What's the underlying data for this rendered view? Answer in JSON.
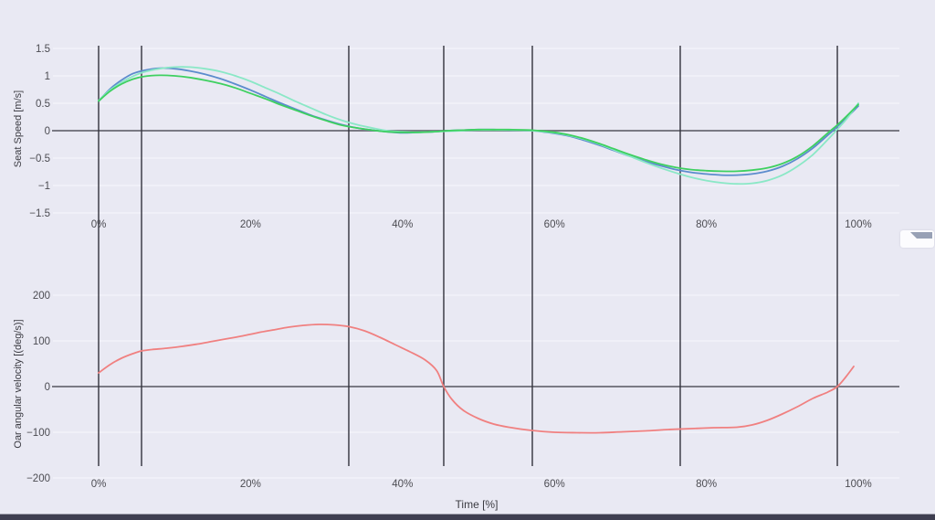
{
  "theme": {
    "background": "#e9e9f3",
    "grid_color": "#f5f5fb",
    "zero_line_color": "#7a7a84",
    "event_line_color": "#32323c",
    "tick_text_color": "#4c4c52",
    "axis_title_color": "#3b3b42",
    "bottom_bar_color": "#3e3e50",
    "bottom_bar_border": "#a2a2ae",
    "toolbar_icon_color": "#98a1b5"
  },
  "event_lines_pct": [
    0,
    5.65,
    32.93,
    45.43,
    57.09,
    76.56,
    97.24
  ],
  "chart_data": [
    {
      "type": "line",
      "title": "",
      "ylabel": "Seat Speed [m/s]",
      "xlabel": "",
      "grid": true,
      "legend": "none",
      "ylim": [
        -1.6,
        1.6
      ],
      "xlim_pct": [
        -6,
        105
      ],
      "y_ticks": {
        "values": [
          1.5,
          1,
          0.5,
          0,
          -0.5,
          -1,
          -1.5
        ],
        "labels": [
          "1.5",
          "1",
          "0.5",
          "0",
          "−0.5",
          "−1",
          "−1.5"
        ]
      },
      "x_ticks": {
        "values_pct": [
          0,
          20,
          40,
          60,
          80,
          100
        ],
        "labels": [
          "0%",
          "20%",
          "40%",
          "60%",
          "80%",
          "100%"
        ]
      },
      "series": [
        {
          "name": "seat-speed-trace-blue",
          "color": "#5c8ccd",
          "x_pct": [
            0,
            1.5,
            3,
            4.5,
            6,
            8,
            10,
            12,
            14,
            16,
            18,
            20,
            22,
            24,
            26,
            28,
            30,
            32,
            34,
            36,
            38,
            40,
            42,
            44,
            46,
            48,
            50,
            52,
            54,
            57,
            60,
            62,
            64,
            66,
            68,
            70,
            72,
            74,
            76,
            78,
            80,
            82,
            84,
            86,
            88,
            90,
            92,
            94,
            96,
            97.2,
            98.5,
            100
          ],
          "y": [
            0.54,
            0.76,
            0.92,
            1.04,
            1.1,
            1.14,
            1.13,
            1.09,
            1.03,
            0.95,
            0.85,
            0.74,
            0.62,
            0.5,
            0.39,
            0.28,
            0.19,
            0.11,
            0.05,
            0.01,
            -0.02,
            -0.04,
            -0.03,
            -0.02,
            0.0,
            0.01,
            0.02,
            0.02,
            0.01,
            0.0,
            -0.05,
            -0.1,
            -0.18,
            -0.27,
            -0.37,
            -0.47,
            -0.56,
            -0.64,
            -0.71,
            -0.76,
            -0.79,
            -0.81,
            -0.81,
            -0.79,
            -0.74,
            -0.65,
            -0.51,
            -0.32,
            -0.08,
            0.07,
            0.24,
            0.45
          ]
        },
        {
          "name": "seat-speed-trace-mint",
          "color": "#8ae8c6",
          "x_pct": [
            0,
            1.5,
            3,
            4.5,
            6,
            8,
            10,
            12,
            14,
            16,
            18,
            20,
            22,
            24,
            26,
            28,
            30,
            32,
            34,
            36,
            38,
            40,
            42,
            44,
            46,
            48,
            50,
            52,
            54,
            57,
            60,
            62,
            64,
            66,
            68,
            70,
            72,
            74,
            76,
            78,
            80,
            82,
            84,
            86,
            88,
            90,
            92,
            94,
            96,
            97.2,
            98.5,
            100
          ],
          "y": [
            0.55,
            0.74,
            0.88,
            0.99,
            1.07,
            1.13,
            1.16,
            1.16,
            1.13,
            1.08,
            1.0,
            0.9,
            0.78,
            0.66,
            0.53,
            0.41,
            0.29,
            0.19,
            0.11,
            0.05,
            0.0,
            -0.02,
            -0.03,
            -0.02,
            -0.01,
            0.0,
            0.01,
            0.01,
            0.01,
            0.0,
            -0.04,
            -0.09,
            -0.16,
            -0.25,
            -0.36,
            -0.47,
            -0.58,
            -0.68,
            -0.77,
            -0.85,
            -0.91,
            -0.95,
            -0.97,
            -0.96,
            -0.91,
            -0.81,
            -0.65,
            -0.44,
            -0.16,
            0.02,
            0.22,
            0.5
          ]
        },
        {
          "name": "seat-speed-trace-green",
          "color": "#3ed060",
          "x_pct": [
            0,
            1.5,
            3,
            4.5,
            6,
            8,
            10,
            12,
            14,
            16,
            18,
            20,
            22,
            24,
            26,
            28,
            30,
            32,
            34,
            36,
            38,
            40,
            42,
            44,
            46,
            48,
            50,
            52,
            54,
            57,
            60,
            62,
            64,
            66,
            68,
            70,
            72,
            74,
            76,
            78,
            80,
            82,
            84,
            86,
            88,
            90,
            92,
            94,
            96,
            97.2,
            98.5,
            100
          ],
          "y": [
            0.54,
            0.72,
            0.85,
            0.94,
            0.99,
            1.01,
            1.0,
            0.97,
            0.92,
            0.86,
            0.78,
            0.68,
            0.58,
            0.47,
            0.37,
            0.27,
            0.18,
            0.1,
            0.05,
            0.01,
            -0.02,
            -0.03,
            -0.03,
            -0.02,
            0.0,
            0.01,
            0.02,
            0.02,
            0.02,
            0.01,
            -0.03,
            -0.08,
            -0.15,
            -0.24,
            -0.34,
            -0.44,
            -0.53,
            -0.61,
            -0.67,
            -0.71,
            -0.73,
            -0.74,
            -0.74,
            -0.72,
            -0.68,
            -0.6,
            -0.47,
            -0.28,
            -0.04,
            0.1,
            0.27,
            0.48
          ]
        }
      ]
    },
    {
      "type": "line",
      "title": "",
      "ylabel": "Oar angular velocity [(deg/s)]",
      "xlabel": "Time [%]",
      "grid": true,
      "legend": "none",
      "ylim": [
        -230,
        230
      ],
      "xlim_pct": [
        -6,
        105
      ],
      "y_ticks": {
        "values": [
          200,
          100,
          0,
          -100,
          -200
        ],
        "labels": [
          "200",
          "100",
          "0",
          "−100",
          "−200"
        ]
      },
      "x_ticks": {
        "values_pct": [
          0,
          20,
          40,
          60,
          80,
          100
        ],
        "labels": [
          "0%",
          "20%",
          "40%",
          "60%",
          "80%",
          "100%"
        ]
      },
      "series": [
        {
          "name": "oar-angular-velocity-trace",
          "color": "#f08080",
          "x_pct": [
            0,
            1.5,
            3,
            4.5,
            5.65,
            7,
            9,
            11,
            13,
            15,
            17,
            19,
            21,
            23,
            25,
            27,
            29,
            31,
            33,
            35,
            37,
            39,
            41,
            43,
            44.5,
            45.43,
            46.5,
            48,
            50,
            52,
            54,
            57,
            60,
            63,
            66,
            69,
            72,
            75,
            78,
            81,
            84,
            86,
            88,
            90,
            92,
            94,
            96,
            97.24,
            98.3,
            99.4
          ],
          "y": [
            30,
            48,
            62,
            72,
            78,
            81,
            84,
            88,
            93,
            99,
            105,
            111,
            118,
            124,
            130,
            134,
            136,
            135,
            131,
            122,
            108,
            92,
            76,
            58,
            35,
            0,
            -28,
            -52,
            -70,
            -82,
            -89,
            -96,
            -100,
            -101,
            -101,
            -99,
            -97,
            -94,
            -92,
            -90,
            -89,
            -84,
            -74,
            -60,
            -44,
            -26,
            -12,
            0,
            20,
            44
          ]
        }
      ]
    }
  ]
}
